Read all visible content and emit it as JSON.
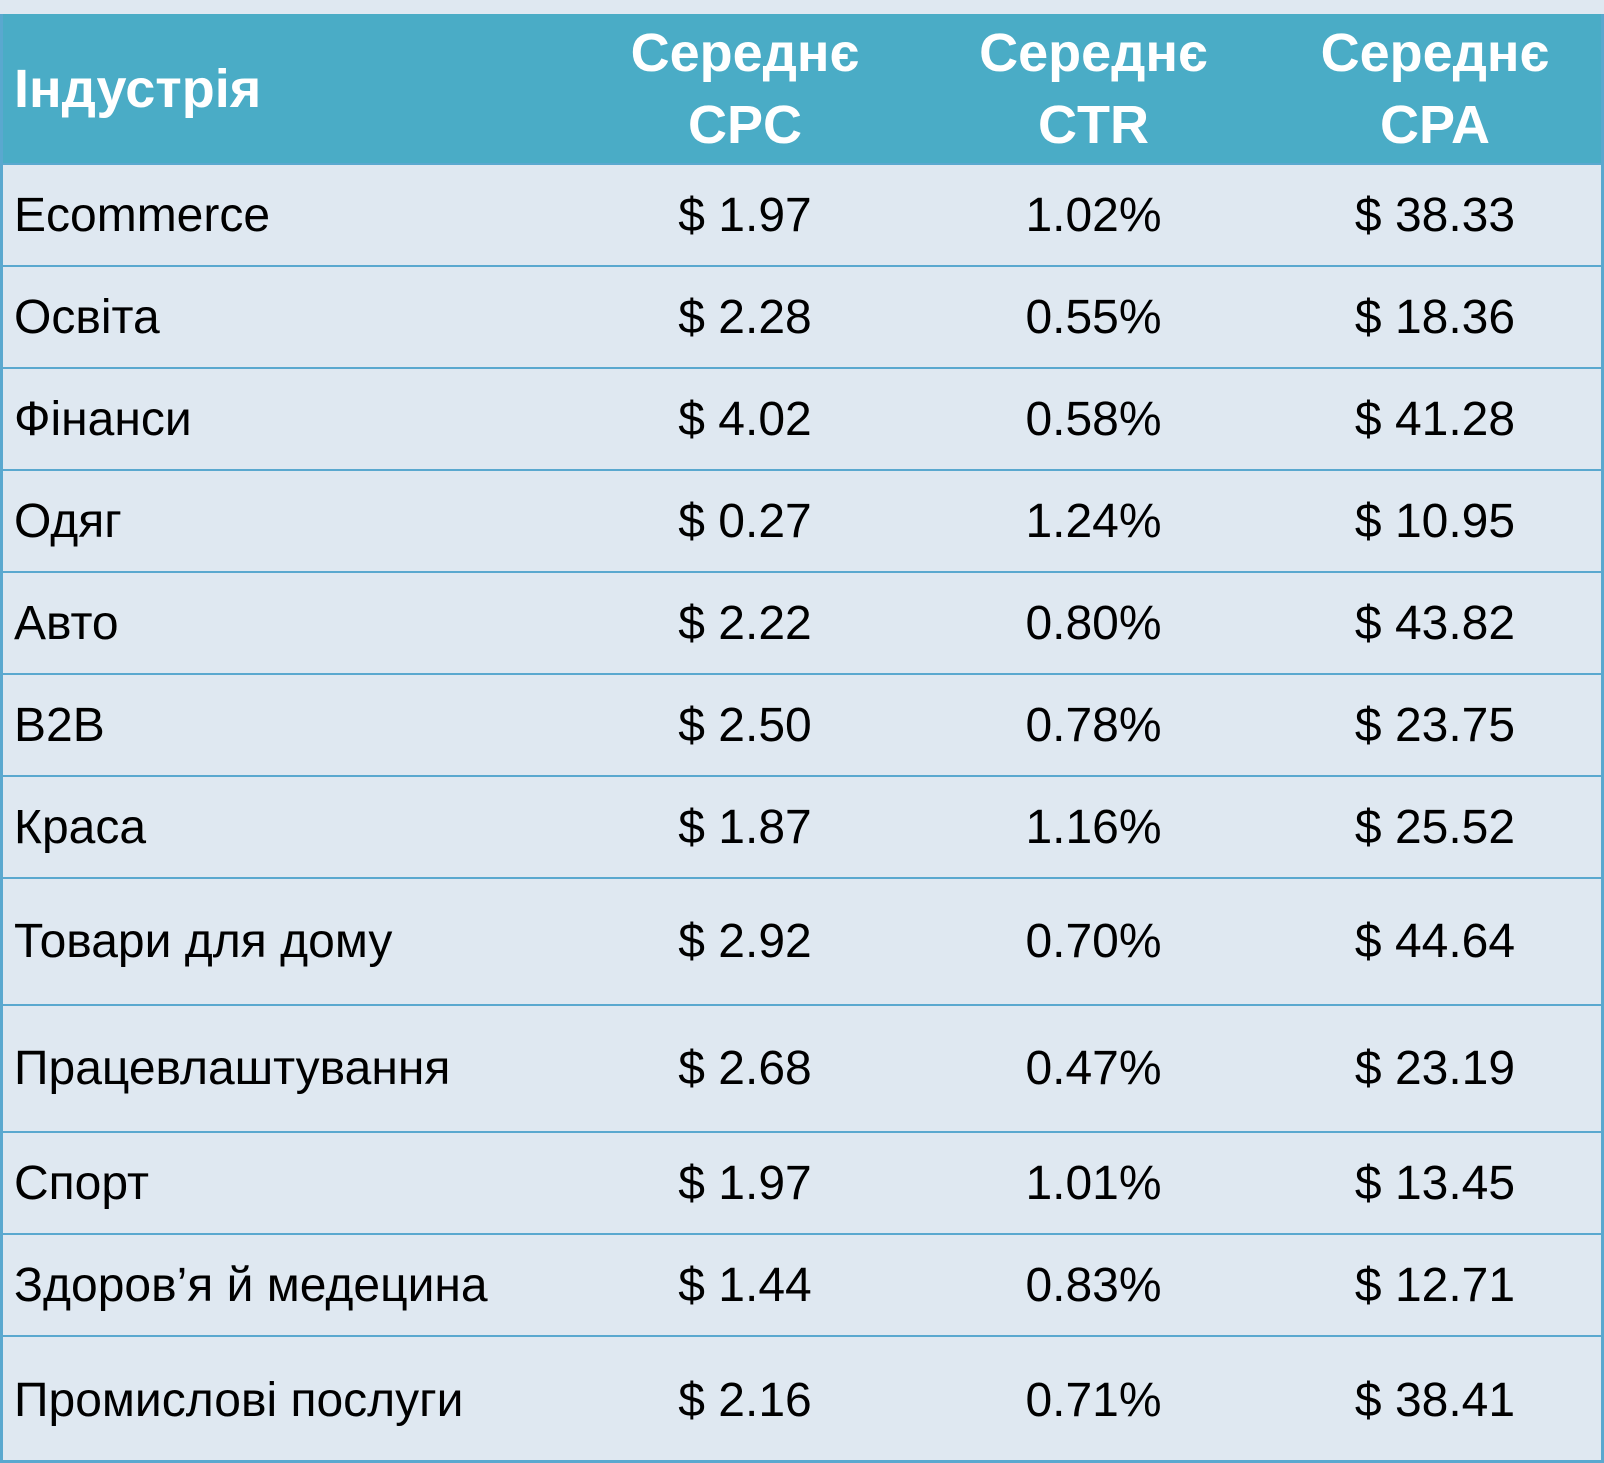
{
  "table": {
    "headers": {
      "industry": "Індустрія",
      "cpc_line1": "Середнє",
      "cpc_line2": "CPC",
      "ctr_line1": "Середнє",
      "ctr_line2": "CTR",
      "cpa_line1": "Середнє",
      "cpa_line2": "CPA"
    },
    "rows": [
      {
        "industry": "Ecommerce",
        "cpc": "$ 1.97",
        "ctr": "1.02%",
        "cpa": "$ 38.33"
      },
      {
        "industry": "Освіта",
        "cpc": "$ 2.28",
        "ctr": "0.55%",
        "cpa": "$ 18.36"
      },
      {
        "industry": "Фінанси",
        "cpc": "$ 4.02",
        "ctr": "0.58%",
        "cpa": "$ 41.28"
      },
      {
        "industry": "Одяг",
        "cpc": "$ 0.27",
        "ctr": "1.24%",
        "cpa": "$ 10.95"
      },
      {
        "industry": "Авто",
        "cpc": "$ 2.22",
        "ctr": "0.80%",
        "cpa": "$ 43.82"
      },
      {
        "industry": "B2B",
        "cpc": "$ 2.50",
        "ctr": "0.78%",
        "cpa": "$ 23.75"
      },
      {
        "industry": "Краса",
        "cpc": "$ 1.87",
        "ctr": "1.16%",
        "cpa": "$ 25.52"
      },
      {
        "industry": "Товари для дому",
        "cpc": "$ 2.92",
        "ctr": "0.70%",
        "cpa": "$ 44.64"
      },
      {
        "industry": "Працевлаштування",
        "cpc": "$ 2.68",
        "ctr": "0.47%",
        "cpa": "$ 23.19"
      },
      {
        "industry": "Спорт",
        "cpc": "$ 1.97",
        "ctr": "1.01%",
        "cpa": "$ 13.45"
      },
      {
        "industry": "Здоров’я й медецина",
        "cpc": "$ 1.44",
        "ctr": "0.83%",
        "cpa": "$ 12.71"
      },
      {
        "industry": "Промислові послуги",
        "cpc": "$ 2.16",
        "ctr": "0.71%",
        "cpa": "$ 38.41"
      }
    ]
  },
  "colors": {
    "header_background": "#4aacc6",
    "header_text": "#ffffff",
    "row_background": "#dfe8f1",
    "grid_line": "#5aa8cf",
    "body_text": "#000000"
  }
}
